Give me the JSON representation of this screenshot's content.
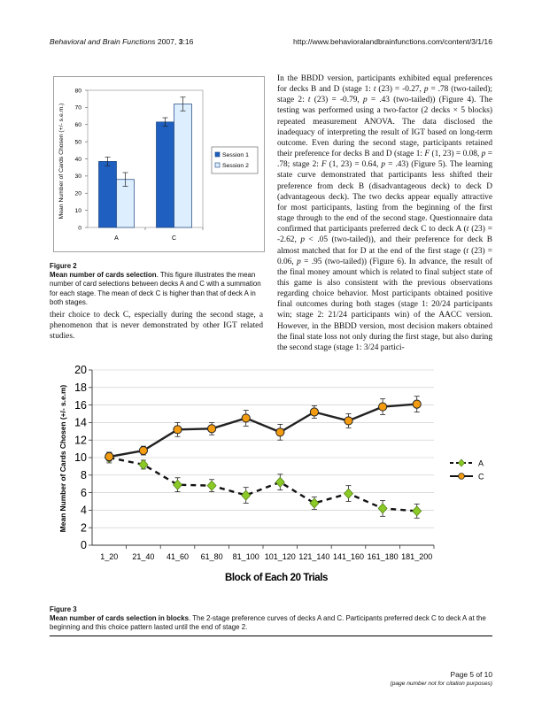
{
  "header": {
    "journal": "Behavioral and Brain Functions",
    "year_volume": "2007, ",
    "volume_bold": "3",
    "pages": ":16",
    "url": "http://www.behavioralandbrainfunctions.com/content/3/1/16"
  },
  "figure2": {
    "label": "Figure 2",
    "title": "Mean number of cards selection",
    "caption": ". This figure illustrates the mean number of card selections between decks A and C with a summation for each stage. The mean of deck C is higher than that of deck A in both stages."
  },
  "figure3": {
    "label": "Figure 3",
    "title": "Mean number of cards selection in blocks",
    "caption": ". The 2-stage preference curves of decks A and C. Participants preferred deck C to deck A at the beginning and this choice pattern lasted until the end of stage 2."
  },
  "left_column_text": "their choice to deck C, especially during the second stage, a phenomenon that is never demonstrated by other IGT related studies.",
  "right_column_html": "In the BBDD version, participants exhibited equal preferences for decks B and D (stage 1: <i>t</i> (23) = -0.27, <i>p</i> = .78 (two-tailed); stage 2: <i>t</i> (23) = -0.79, <i>p</i> = .43 (two-tailed)) (Figure 4). The testing was performed using a two-factor (2 decks × 5 blocks) repeated measurement ANOVA. The data disclosed the inadequacy of interpreting the result of IGT based on long-term outcome. Even during the second stage, participants retained their preference for decks B and D (stage 1: <i>F</i> (1, 23) = 0.08, <i>p</i> = .78; stage 2: <i>F</i> (1, 23) = 0.64, <i>p</i> = .43) (Figure 5). The learning state curve demonstrated that participants less shifted their preference from deck B (disadvantageous deck) to deck D (advantageous deck). The two decks appear equally attractive for most participants, lasting from the beginning of the first stage through to the end of the second stage. Questionnaire data confirmed that participants preferred deck C to deck A (<i>t</i> (23) = -2.62, <i>p</i> &lt; .05 (two-tailed)), and their preference for deck B almost matched that for D at the end of the first stage (<i>t</i> (23) = 0.06, <i>p</i> = .95 (two-tailed)) (Figure 6). In advance, the result of the final money amount which is related to final subject state of this game is also consistent with the previous observations regarding choice behavior. Most participants obtained positive final outcomes during both stages (stage 1: 20/24 participants win; stage 2: 21/24 participants win) of the AACC version. However, in the BBDD version, most decision makers obtained the final state loss not only during the first stage, but also during the second stage (stage 1: 3/24 partici-",
  "footer": {
    "page": "Page 5 of 10",
    "note": "(page number not for citation purposes)"
  },
  "chart_data": [
    {
      "type": "bar",
      "ylabel": "Mean Number of Cards Chosen (+/- s.e.m.)",
      "categories": [
        "A",
        "C"
      ],
      "ylim": [
        0,
        80
      ],
      "yticks": [
        0,
        10,
        20,
        30,
        40,
        50,
        60,
        70,
        80
      ],
      "series": [
        {
          "name": "Session 1",
          "values": [
            38.5,
            61.5
          ],
          "errors": [
            2.5,
            2.5
          ],
          "color": "#1f5fbf"
        },
        {
          "name": "Session 2",
          "values": [
            28,
            72
          ],
          "errors": [
            4,
            4
          ],
          "color": "#ddeeff"
        }
      ],
      "legend": "right"
    },
    {
      "type": "line",
      "ylabel": "Mean Number of Cards Chosen (+/- s.e.m)",
      "xlabel": "Block of Each 20 Trials",
      "categories": [
        "1_20",
        "21_40",
        "41_60",
        "61_80",
        "81_100",
        "101_120",
        "121_140",
        "141_160",
        "161_180",
        "181_200"
      ],
      "ylim": [
        0,
        20
      ],
      "yticks": [
        0,
        2,
        4,
        6,
        8,
        10,
        12,
        14,
        16,
        18,
        20
      ],
      "series": [
        {
          "name": "A",
          "values": [
            10,
            9.2,
            6.9,
            6.8,
            5.7,
            7.2,
            4.8,
            5.9,
            4.2,
            3.9
          ],
          "errors": [
            0.6,
            0.5,
            0.8,
            0.7,
            0.9,
            0.9,
            0.7,
            0.9,
            0.9,
            0.8
          ],
          "color": "#8ac926",
          "style": "dashed",
          "marker": "diamond"
        },
        {
          "name": "C",
          "values": [
            10.1,
            10.8,
            13.2,
            13.3,
            14.5,
            12.9,
            15.2,
            14.2,
            15.8,
            16.1
          ],
          "errors": [
            0.5,
            0.5,
            0.8,
            0.7,
            0.9,
            0.9,
            0.7,
            0.8,
            0.9,
            0.9
          ],
          "color": "#f39c12",
          "style": "solid",
          "marker": "circle"
        }
      ],
      "legend": "right"
    }
  ]
}
